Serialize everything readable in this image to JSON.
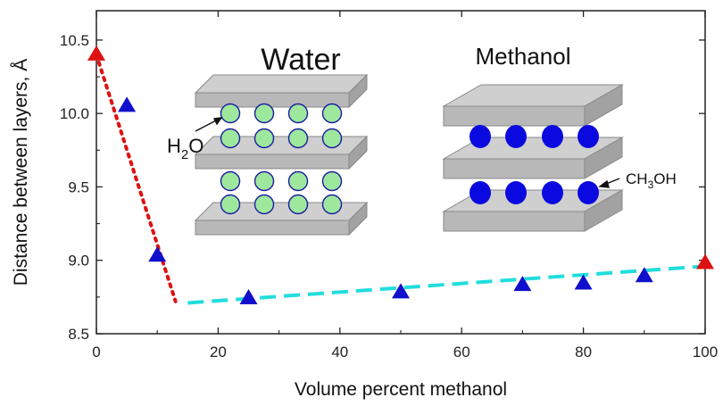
{
  "chart_data": {
    "type": "scatter",
    "xlabel": "Volume percent methanol",
    "ylabel": "Distance between layers, Å",
    "xlim": [
      0,
      100
    ],
    "ylim": [
      8.5,
      10.7
    ],
    "x_ticks": [
      "0",
      "20",
      "40",
      "60",
      "80",
      "100"
    ],
    "y_ticks": [
      "8.5",
      "9.0",
      "9.5",
      "10.0",
      "10.5"
    ],
    "grid": false,
    "series": [
      {
        "marker": "triangle",
        "color": "#1010cc",
        "x": [
          5,
          10,
          25,
          50,
          70,
          80,
          90
        ],
        "y": [
          10.05,
          9.03,
          8.74,
          8.78,
          8.83,
          8.84,
          8.89
        ]
      },
      {
        "marker": "triangle",
        "color": "#dd1111",
        "x": [
          0,
          100
        ],
        "y": [
          10.4,
          8.98
        ]
      }
    ],
    "trend_lines": [
      {
        "style": "dotted",
        "color": "#dd1111",
        "x": [
          0,
          13
        ],
        "y": [
          10.4,
          8.72
        ]
      },
      {
        "style": "dashed",
        "color": "#22dddd",
        "x": [
          15,
          100
        ],
        "y": [
          8.71,
          8.96
        ]
      }
    ],
    "annotations": {
      "water_title": "Water",
      "methanol_title": "Methanol",
      "water_molecule": "H",
      "water_molecule_sub": "2",
      "water_molecule_end": "O",
      "methanol_molecule": "CH",
      "methanol_molecule_sub": "3",
      "methanol_molecule_end": "OH"
    },
    "inset_colors": {
      "layer": "#b8b8b8",
      "water_molecule": "#9ee89e",
      "water_outline": "#1a1aa0",
      "methanol_molecule": "#0a0ae0"
    }
  }
}
